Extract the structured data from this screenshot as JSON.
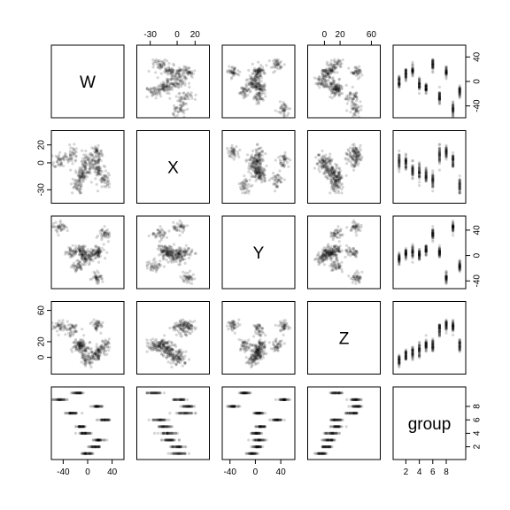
{
  "chart_data": {
    "type": "scatter",
    "title": "",
    "variables": [
      {
        "name": "W",
        "range": [
          -55,
          55
        ],
        "ticks": [
          -40,
          0,
          40
        ]
      },
      {
        "name": "X",
        "range": [
          -42,
          33
        ],
        "ticks": [
          -30,
          0,
          20
        ]
      },
      {
        "name": "Y",
        "range": [
          -48,
          58
        ],
        "ticks": [
          -40,
          0,
          40
        ]
      },
      {
        "name": "Z",
        "range": [
          -18,
          68
        ],
        "ticks": [
          0,
          20,
          60
        ]
      },
      {
        "name": "group",
        "range": [
          0.5,
          10.5
        ],
        "ticks": [
          2,
          4,
          6,
          8
        ]
      }
    ],
    "axis_labels": {
      "top": {
        "1": [
          "-30",
          "0",
          "20"
        ],
        "3": [
          "0",
          "20",
          "60"
        ]
      },
      "bottom": {
        "0": [
          "-40",
          "0",
          "40"
        ],
        "2": [
          "-40",
          "0",
          "40"
        ],
        "4": [
          "2",
          "4",
          "6",
          "8"
        ]
      },
      "left": {
        "1": [
          "-30",
          "0",
          "20"
        ],
        "3": [
          "0",
          "20",
          "60"
        ]
      },
      "right": {
        "0": [
          "-40",
          "0",
          "40"
        ],
        "2": [
          "-40",
          "0",
          "40"
        ],
        "4": [
          "2",
          "4",
          "6",
          "8"
        ]
      }
    },
    "groups": [
      {
        "group": 1,
        "W": 0,
        "X": 2,
        "Y": -5,
        "Z": -5
      },
      {
        "group": 2,
        "W": 12,
        "X": 0,
        "Y": 3,
        "Z": 3
      },
      {
        "group": 3,
        "W": 18,
        "X": -8,
        "Y": 5,
        "Z": 6
      },
      {
        "group": 4,
        "W": -5,
        "X": -10,
        "Y": 2,
        "Z": 10
      },
      {
        "group": 5,
        "W": -12,
        "X": -15,
        "Y": 10,
        "Z": 15
      },
      {
        "group": 6,
        "W": 28,
        "X": -20,
        "Y": 35,
        "Z": 15
      },
      {
        "group": 7,
        "W": -25,
        "X": 10,
        "Y": 5,
        "Z": 35
      },
      {
        "group": 8,
        "W": 15,
        "X": 12,
        "Y": -35,
        "Z": 40
      },
      {
        "group": 9,
        "W": -45,
        "X": 3,
        "Y": 45,
        "Z": 40
      },
      {
        "group": 10,
        "W": -18,
        "X": -25,
        "Y": -18,
        "Z": 15
      }
    ],
    "grid": false,
    "legend": "none",
    "point_color": "rgba(0,0,0,0.16)"
  }
}
